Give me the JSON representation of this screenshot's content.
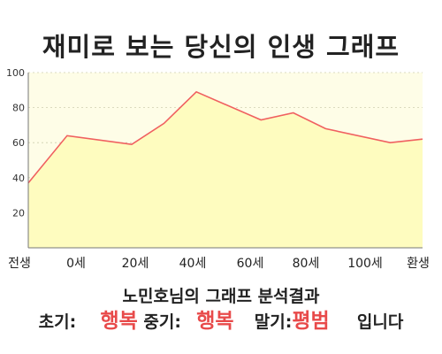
{
  "page": {
    "title": "재미로 보는 당신의 인생 그래프"
  },
  "chart_data": {
    "type": "area",
    "title": "재미로 보는 당신의 인생 그래프",
    "x_labels": [
      "전생",
      "0세",
      "20세",
      "40세",
      "60세",
      "80세",
      "100세",
      "환생"
    ],
    "y_ticks": [
      20,
      40,
      60,
      80,
      100
    ],
    "ylim": [
      0,
      100
    ],
    "grid": true,
    "series": [
      {
        "x": [
          -12,
          0,
          20,
          30,
          40,
          60,
          70,
          80,
          100,
          110
        ],
        "y": [
          37,
          64,
          59,
          71,
          89,
          73,
          77,
          68,
          60,
          62
        ]
      }
    ],
    "colors": {
      "line": "#f06060",
      "fill": "#fefcbf",
      "plot_bg": "#fefde7",
      "grid": "#cfcfb0"
    }
  },
  "result": {
    "heading": "노민호님의 그래프 분석결과",
    "early_label": "초기:",
    "early_value": "행복",
    "middle_label": "중기:",
    "middle_value": "행복",
    "late_label": "말기:",
    "late_value": "평범",
    "suffix": "입니다"
  }
}
